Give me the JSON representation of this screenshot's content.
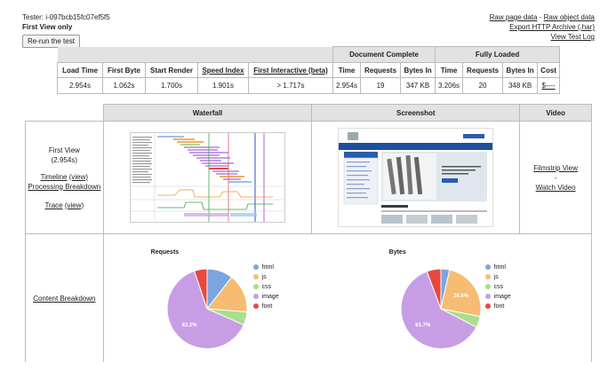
{
  "header": {
    "tester": "Tester: i-097bcb15fc07ef5f5",
    "view": "First View only",
    "rerun_label": "Re-run the test",
    "links": [
      "Raw page data",
      "-",
      "Raw object data",
      "Export HTTP Archive (.har)",
      "View Test Log"
    ]
  },
  "summary": {
    "groups": [
      "Document Complete",
      "Fully Loaded"
    ],
    "columns": [
      "Load Time",
      "First Byte",
      "Start Render",
      "Speed Index",
      "First Interactive (beta)",
      "Time",
      "Requests",
      "Bytes In",
      "Time",
      "Requests",
      "Bytes In",
      "Cost"
    ],
    "values": [
      "2.954s",
      "1.062s",
      "1.700s",
      "1.901s",
      "> 1.717s",
      "2.954s",
      "19",
      "347 KB",
      "3.206s",
      "20",
      "348 KB",
      "$----"
    ]
  },
  "results": {
    "headers": [
      "Waterfall",
      "Screenshot",
      "Video"
    ],
    "first_view": "First View",
    "first_view_time": "(2.954s)",
    "timeline": "Timeline",
    "timeline_view": "(view)",
    "processing": "Processing Breakdown",
    "trace": "Trace",
    "trace_view": "(view)",
    "filmstrip": "Filmstrip View",
    "dash": "-",
    "watch_video": "Watch Video",
    "content_breakdown": "Content Breakdown"
  },
  "screenshot": {
    "banner_title": "Shanghai Hexun Chongwei Grinding Materials Co., Ltd",
    "nav_items": [
      "Home",
      "About Us",
      "Products",
      "Quality Control",
      "Contact Us",
      "Request A Quote"
    ],
    "sidebar_title": "ALL CATEGORIES",
    "product_caption": "Cemented Tungsten Carbide Gauge Check Rods Gauge Blade Ring Manufacturer",
    "top_products": "Top Products"
  },
  "charts": {
    "colors": {
      "html": "#7aa6e0",
      "js": "#f6bc73",
      "css": "#a8de8c",
      "image": "#c79ee6",
      "font": "#e8483f"
    },
    "legend": [
      "html",
      "js",
      "css",
      "image",
      "font"
    ]
  },
  "chart_data": [
    {
      "type": "pie",
      "title": "Requests",
      "categories": [
        "html",
        "js",
        "css",
        "image",
        "font"
      ],
      "values": [
        10.5,
        15.8,
        5.3,
        63.2,
        5.2
      ],
      "slice_labels": [
        "",
        "",
        "",
        "63.2%",
        ""
      ]
    },
    {
      "type": "pie",
      "title": "Bytes",
      "categories": [
        "html",
        "js",
        "css",
        "image",
        "font"
      ],
      "values": [
        3.5,
        24.6,
        4.5,
        61.7,
        5.7
      ],
      "slice_labels": [
        "",
        "24.6%",
        "",
        "61.7%",
        ""
      ]
    }
  ]
}
